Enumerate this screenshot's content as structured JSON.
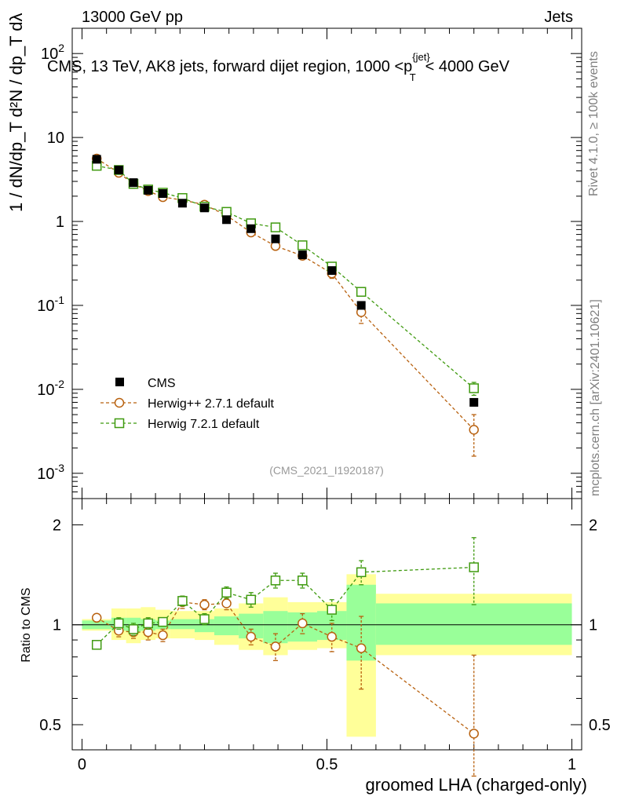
{
  "header": {
    "energy_label": "13000 GeV pp",
    "process_label": "Jets",
    "plot_title": "CMS, 13 TeV, AK8 jets, forward dijet region, 1000 <p",
    "plot_title_sup": "{jet}",
    "plot_title_sub": "T",
    "plot_title_tail": "< 4000 GeV",
    "analysis_id": "(CMS_2021_I1920187)"
  },
  "side_labels": {
    "rivet": "Rivet 4.1.0, ≥ 100k events",
    "mcplots": "mcplots.cern.ch [arXiv:2401.10621]"
  },
  "axes": {
    "ylabel_main": "1 / dN/dp_T  d²N / dp_T dλ",
    "ylabel_ratio": "Ratio to CMS",
    "xlabel": "groomed LHA (charged-only)"
  },
  "legend": {
    "cms": "CMS",
    "herwigpp": "Herwig++ 2.7.1 default",
    "herwig7": "Herwig 7.2.1 default"
  },
  "colors": {
    "herwigpp": "#b8610f",
    "herwig7": "#3f9a0f",
    "band_inner": "#99ff99",
    "band_outer": "#ffff99"
  },
  "chart_data": [
    {
      "type": "scatter",
      "panel": "main",
      "title": "CMS, 13 TeV, AK8 jets, forward dijet region, 1000 < pT(jet) < 4000 GeV",
      "xlabel": "groomed LHA (charged-only)",
      "ylabel": "1/(dN/dpT) d2N/(dpT dlambda)",
      "yscale": "log",
      "xlim": [
        -0.02,
        1.02
      ],
      "ylim": [
        0.0005,
        200
      ],
      "ytick_labels": [
        "10^-3",
        "10^-2",
        "10^-1",
        "1",
        "10",
        "10^2"
      ],
      "x_bins": [
        [
          0.0,
          0.06
        ],
        [
          0.06,
          0.09
        ],
        [
          0.09,
          0.12
        ],
        [
          0.12,
          0.15
        ],
        [
          0.15,
          0.18
        ],
        [
          0.18,
          0.23
        ],
        [
          0.23,
          0.27
        ],
        [
          0.27,
          0.32
        ],
        [
          0.32,
          0.37
        ],
        [
          0.37,
          0.42
        ],
        [
          0.42,
          0.48
        ],
        [
          0.48,
          0.54
        ],
        [
          0.54,
          0.6
        ],
        [
          0.6,
          1.0
        ]
      ],
      "x": [
        0.03,
        0.075,
        0.105,
        0.135,
        0.165,
        0.205,
        0.25,
        0.295,
        0.345,
        0.395,
        0.45,
        0.51,
        0.57,
        0.8
      ],
      "series": [
        {
          "name": "CMS",
          "values": [
            5.5,
            4.1,
            2.9,
            2.35,
            2.15,
            1.65,
            1.45,
            1.05,
            0.82,
            0.62,
            0.4,
            0.26,
            0.1,
            0.007
          ]
        },
        {
          "name": "Herwig++ 2.7.1 default",
          "values": [
            5.6,
            3.8,
            2.8,
            2.3,
            1.95,
            1.8,
            1.58,
            1.18,
            0.74,
            0.51,
            0.39,
            0.24,
            0.083,
            0.0033
          ],
          "err_lo": [
            0.05,
            0.05,
            0.04,
            0.03,
            0.03,
            0.05,
            0.05,
            0.04,
            0.04,
            0.04,
            0.04,
            0.03,
            0.022,
            0.0017
          ],
          "err_hi": [
            0.05,
            0.05,
            0.04,
            0.03,
            0.03,
            0.05,
            0.05,
            0.04,
            0.04,
            0.04,
            0.04,
            0.03,
            0.022,
            0.0017
          ]
        },
        {
          "name": "Herwig 7.2.1 default",
          "values": [
            4.6,
            4.1,
            2.8,
            2.4,
            2.2,
            1.9,
            1.5,
            1.3,
            0.95,
            0.85,
            0.52,
            0.29,
            0.145,
            0.0103
          ],
          "err_lo": [
            0.04,
            0.05,
            0.04,
            0.03,
            0.03,
            0.04,
            0.04,
            0.04,
            0.04,
            0.04,
            0.03,
            0.03,
            0.015,
            0.0018
          ],
          "err_hi": [
            0.04,
            0.05,
            0.04,
            0.03,
            0.03,
            0.04,
            0.04,
            0.04,
            0.04,
            0.04,
            0.03,
            0.03,
            0.015,
            0.0018
          ]
        }
      ]
    },
    {
      "type": "scatter",
      "panel": "ratio",
      "ylabel": "Ratio to CMS",
      "xlabel": "groomed LHA (charged-only)",
      "yscale": "log",
      "xlim": [
        -0.02,
        1.02
      ],
      "ylim": [
        0.42,
        2.4
      ],
      "x_ticks": [
        0,
        0.5,
        1
      ],
      "y_ticks": [
        0.5,
        1,
        2
      ],
      "x_bins": [
        [
          0.0,
          0.06
        ],
        [
          0.06,
          0.09
        ],
        [
          0.09,
          0.12
        ],
        [
          0.12,
          0.15
        ],
        [
          0.15,
          0.18
        ],
        [
          0.18,
          0.23
        ],
        [
          0.23,
          0.27
        ],
        [
          0.27,
          0.32
        ],
        [
          0.32,
          0.37
        ],
        [
          0.37,
          0.42
        ],
        [
          0.42,
          0.48
        ],
        [
          0.48,
          0.54
        ],
        [
          0.54,
          0.6
        ],
        [
          0.6,
          1.0
        ]
      ],
      "x": [
        0.03,
        0.075,
        0.105,
        0.135,
        0.165,
        0.205,
        0.25,
        0.295,
        0.345,
        0.395,
        0.45,
        0.51,
        0.57,
        0.8
      ],
      "band_inner": [
        [
          0.97,
          1.03
        ],
        [
          0.96,
          1.05
        ],
        [
          0.95,
          1.05
        ],
        [
          0.96,
          1.04
        ],
        [
          0.97,
          1.03
        ],
        [
          0.97,
          1.04
        ],
        [
          0.95,
          1.04
        ],
        [
          0.93,
          1.06
        ],
        [
          0.91,
          1.08
        ],
        [
          0.88,
          1.1
        ],
        [
          0.89,
          1.09
        ],
        [
          0.9,
          1.1
        ],
        [
          0.78,
          1.32
        ],
        [
          0.87,
          1.16
        ]
      ],
      "band_outer": [
        [
          0.96,
          1.04
        ],
        [
          0.9,
          1.12
        ],
        [
          0.88,
          1.12
        ],
        [
          0.9,
          1.13
        ],
        [
          0.91,
          1.11
        ],
        [
          0.91,
          1.1
        ],
        [
          0.9,
          1.1
        ],
        [
          0.87,
          1.12
        ],
        [
          0.84,
          1.16
        ],
        [
          0.81,
          1.21
        ],
        [
          0.84,
          1.17
        ],
        [
          0.85,
          1.17
        ],
        [
          0.46,
          1.42
        ],
        [
          0.81,
          1.24
        ]
      ],
      "series": [
        {
          "name": "Herwig++ 2.7.1 default",
          "values": [
            1.05,
            0.96,
            0.95,
            0.95,
            0.93,
            1.17,
            1.15,
            1.16,
            0.92,
            0.86,
            1.01,
            0.92,
            0.85,
            0.47
          ],
          "err_lo": [
            0.01,
            0.04,
            0.04,
            0.05,
            0.04,
            0.05,
            0.04,
            0.05,
            0.05,
            0.08,
            0.07,
            0.09,
            0.21,
            0.12
          ],
          "err_hi": [
            0.01,
            0.04,
            0.04,
            0.05,
            0.04,
            0.05,
            0.04,
            0.05,
            0.05,
            0.08,
            0.07,
            0.09,
            0.21,
            0.34
          ]
        },
        {
          "name": "Herwig 7.2.1 default",
          "values": [
            0.87,
            1.01,
            0.97,
            1.01,
            1.02,
            1.18,
            1.04,
            1.25,
            1.19,
            1.36,
            1.36,
            1.11,
            1.44,
            1.49
          ],
          "err_lo": [
            0.01,
            0.04,
            0.04,
            0.04,
            0.03,
            0.04,
            0.04,
            0.05,
            0.06,
            0.07,
            0.07,
            0.08,
            0.12,
            0.34
          ],
          "err_hi": [
            0.01,
            0.04,
            0.04,
            0.04,
            0.03,
            0.04,
            0.04,
            0.05,
            0.06,
            0.07,
            0.07,
            0.08,
            0.12,
            0.34
          ]
        }
      ]
    }
  ]
}
